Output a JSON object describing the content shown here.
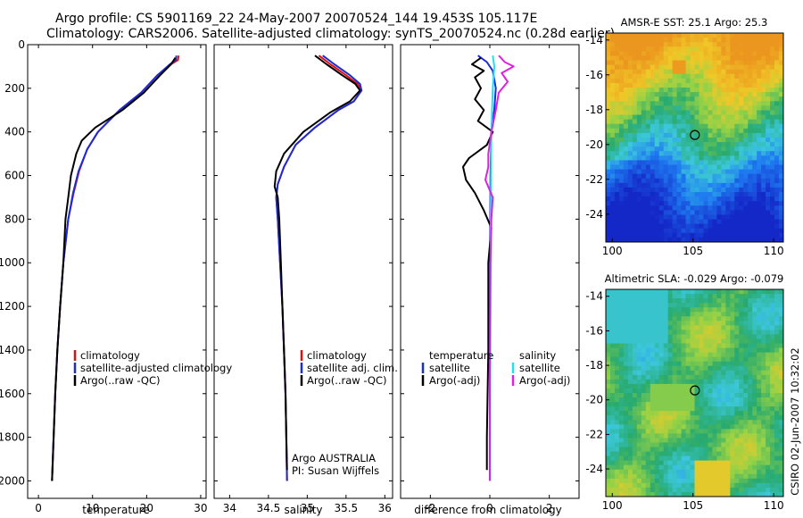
{
  "header": {
    "line1": "Argo profile: CS 5901169_22 24-May-2007 20070524_144 19.453S 105.117E",
    "line2": "Climatology: CARS2006. Satellite-adjusted climatology: synTS_20070524.nc (0.28d earlier)"
  },
  "colors": {
    "red": "#e01010",
    "blue": "#1a2bd8",
    "black": "#000000",
    "cyan": "#22e0f0",
    "magenta": "#e020e0"
  },
  "chart_data": [
    {
      "type": "line",
      "name": "temperature-profile",
      "xlabel": "temperature",
      "xlim": [
        -2,
        31
      ],
      "ylim": [
        2080,
        0
      ],
      "xticks": [
        0,
        10,
        20,
        30
      ],
      "yticks": [
        0,
        200,
        400,
        600,
        800,
        1000,
        1200,
        1400,
        1600,
        1800,
        2000
      ],
      "legend": [
        "climatology",
        "satellite-adjusted climatology",
        "Argo(..raw -QC)"
      ],
      "series": [
        {
          "name": "climatology",
          "color": "red",
          "points": [
            [
              25.9,
              50
            ],
            [
              25.8,
              70
            ],
            [
              24.5,
              90
            ],
            [
              22,
              140
            ],
            [
              19,
              220
            ],
            [
              15,
              300
            ],
            [
              11,
              400
            ],
            [
              9,
              480
            ],
            [
              7.5,
              580
            ],
            [
              6.5,
              680
            ],
            [
              5.5,
              800
            ],
            [
              4.6,
              1000
            ],
            [
              4,
              1200
            ],
            [
              3.5,
              1400
            ],
            [
              3.1,
              1600
            ],
            [
              2.8,
              1800
            ],
            [
              2.5,
              2000
            ]
          ]
        },
        {
          "name": "satellite-adjusted",
          "color": "blue",
          "points": [
            [
              25.5,
              50
            ],
            [
              25.4,
              70
            ],
            [
              24.3,
              90
            ],
            [
              22,
              140
            ],
            [
              19,
              220
            ],
            [
              15,
              300
            ],
            [
              11,
              400
            ],
            [
              9,
              480
            ],
            [
              7.4,
              580
            ],
            [
              6.4,
              680
            ],
            [
              5.5,
              800
            ],
            [
              4.6,
              1000
            ],
            [
              4,
              1200
            ],
            [
              3.5,
              1400
            ],
            [
              3.1,
              1600
            ],
            [
              2.8,
              1800
            ],
            [
              2.5,
              2000
            ]
          ]
        },
        {
          "name": "argo",
          "color": "black",
          "points": [
            [
              25.3,
              60
            ],
            [
              24.5,
              90
            ],
            [
              22.5,
              140
            ],
            [
              19.5,
              220
            ],
            [
              15.5,
              300
            ],
            [
              10.5,
              380
            ],
            [
              8,
              440
            ],
            [
              7,
              500
            ],
            [
              6,
              600
            ],
            [
              5.5,
              700
            ],
            [
              5,
              800
            ],
            [
              4.6,
              1000
            ],
            [
              4,
              1200
            ],
            [
              3.5,
              1400
            ],
            [
              3.1,
              1600
            ],
            [
              2.8,
              1800
            ],
            [
              2.5,
              2000
            ]
          ]
        }
      ]
    },
    {
      "type": "line",
      "name": "salinity-profile",
      "xlabel": "salinity",
      "xlim": [
        33.8,
        36.1
      ],
      "ylim": [
        2080,
        0
      ],
      "xticks": [
        34,
        34.5,
        35,
        35.5,
        36
      ],
      "yticks": [
        0,
        200,
        400,
        600,
        800,
        1000,
        1200,
        1400,
        1600,
        1800,
        2000
      ],
      "legend": [
        "climatology",
        "satellite adj. clim.",
        "Argo(..raw -QC)"
      ],
      "annotations": [
        "Argo AUSTRALIA",
        "PI: Susan Wijffels"
      ],
      "series": [
        {
          "name": "climatology",
          "color": "red",
          "points": [
            [
              35.15,
              50
            ],
            [
              35.3,
              90
            ],
            [
              35.5,
              140
            ],
            [
              35.65,
              180
            ],
            [
              35.7,
              210
            ],
            [
              35.6,
              260
            ],
            [
              35.4,
              300
            ],
            [
              35.1,
              380
            ],
            [
              34.85,
              460
            ],
            [
              34.7,
              560
            ],
            [
              34.62,
              640
            ],
            [
              34.6,
              700
            ],
            [
              34.62,
              800
            ],
            [
              34.65,
              1000
            ],
            [
              34.68,
              1200
            ],
            [
              34.7,
              1400
            ],
            [
              34.72,
              1600
            ],
            [
              34.73,
              1800
            ],
            [
              34.74,
              2000
            ]
          ]
        },
        {
          "name": "satellite-adjusted",
          "color": "blue",
          "points": [
            [
              35.2,
              50
            ],
            [
              35.35,
              90
            ],
            [
              35.55,
              140
            ],
            [
              35.68,
              180
            ],
            [
              35.7,
              210
            ],
            [
              35.6,
              260
            ],
            [
              35.4,
              300
            ],
            [
              35.1,
              380
            ],
            [
              34.85,
              460
            ],
            [
              34.7,
              560
            ],
            [
              34.62,
              640
            ],
            [
              34.6,
              700
            ],
            [
              34.62,
              800
            ],
            [
              34.65,
              1000
            ],
            [
              34.68,
              1200
            ],
            [
              34.7,
              1400
            ],
            [
              34.72,
              1600
            ],
            [
              34.73,
              1800
            ],
            [
              34.74,
              2000
            ]
          ]
        },
        {
          "name": "argo",
          "color": "black",
          "points": [
            [
              35.1,
              50
            ],
            [
              35.25,
              90
            ],
            [
              35.45,
              140
            ],
            [
              35.62,
              180
            ],
            [
              35.68,
              210
            ],
            [
              35.55,
              260
            ],
            [
              35.3,
              310
            ],
            [
              34.95,
              400
            ],
            [
              34.7,
              500
            ],
            [
              34.6,
              580
            ],
            [
              34.58,
              650
            ],
            [
              34.62,
              700
            ],
            [
              34.64,
              800
            ],
            [
              34.66,
              1000
            ],
            [
              34.68,
              1200
            ],
            [
              34.7,
              1400
            ],
            [
              34.72,
              1600
            ],
            [
              34.73,
              1800
            ],
            [
              34.74,
              1950
            ]
          ]
        }
      ]
    },
    {
      "type": "line",
      "name": "difference-profile",
      "xlabel": "difference from climatology",
      "xlim": [
        -3,
        3
      ],
      "ylim": [
        2080,
        0
      ],
      "xticks": [
        -2,
        0,
        2
      ],
      "yticks": [
        0,
        200,
        400,
        600,
        800,
        1000,
        1200,
        1400,
        1600,
        1800,
        2000
      ],
      "legend_left": {
        "heading": "temperature",
        "items": [
          "satellite",
          "Argo(-adj)"
        ]
      },
      "legend_right": {
        "heading": "salinity",
        "items": [
          "satellite",
          "Argo(-adj)"
        ]
      },
      "series": [
        {
          "name": "temperature-satellite",
          "color": "blue",
          "points": [
            [
              -0.4,
              50
            ],
            [
              -0.1,
              80
            ],
            [
              0.1,
              120
            ],
            [
              0.2,
              200
            ],
            [
              0.15,
              300
            ],
            [
              0.05,
              400
            ],
            [
              0.02,
              600
            ],
            [
              0.01,
              1000
            ],
            [
              0,
              1500
            ],
            [
              0,
              2000
            ]
          ]
        },
        {
          "name": "temperature-argo",
          "color": "black",
          "points": [
            [
              -0.3,
              60
            ],
            [
              -0.6,
              90
            ],
            [
              -0.2,
              120
            ],
            [
              -0.5,
              150
            ],
            [
              -0.3,
              200
            ],
            [
              -0.5,
              250
            ],
            [
              -0.2,
              300
            ],
            [
              -0.4,
              350
            ],
            [
              0.1,
              400
            ],
            [
              -0.1,
              460
            ],
            [
              -0.7,
              520
            ],
            [
              -0.9,
              560
            ],
            [
              -0.8,
              620
            ],
            [
              -0.5,
              680
            ],
            [
              -0.2,
              760
            ],
            [
              0.05,
              840
            ],
            [
              -0.05,
              1000
            ],
            [
              -0.05,
              1400
            ],
            [
              -0.1,
              1800
            ],
            [
              -0.1,
              1950
            ]
          ]
        },
        {
          "name": "salinity-satellite",
          "color": "cyan",
          "points": [
            [
              0.1,
              50
            ],
            [
              0.15,
              100
            ],
            [
              0.1,
              200
            ],
            [
              0.05,
              400
            ],
            [
              0.03,
              800
            ],
            [
              0.02,
              1200
            ],
            [
              0.01,
              1600
            ],
            [
              0.01,
              2000
            ]
          ]
        },
        {
          "name": "salinity-argo",
          "color": "magenta",
          "points": [
            [
              0.3,
              50
            ],
            [
              0.5,
              80
            ],
            [
              0.8,
              100
            ],
            [
              0.4,
              130
            ],
            [
              0.6,
              170
            ],
            [
              0.3,
              220
            ],
            [
              0.2,
              300
            ],
            [
              0.05,
              400
            ],
            [
              -0.05,
              500
            ],
            [
              -0.05,
              560
            ],
            [
              -0.15,
              620
            ],
            [
              0.1,
              700
            ],
            [
              0.05,
              800
            ],
            [
              0.02,
              1000
            ],
            [
              0,
              1500
            ],
            [
              0,
              2000
            ]
          ]
        }
      ]
    },
    {
      "type": "heatmap",
      "name": "sst-map",
      "title": "AMSR-E SST: 25.1  Argo: 25.3",
      "xlim": [
        99.6,
        110.6
      ],
      "ylim": [
        -25.6,
        -13.6
      ],
      "xticks": [
        100,
        105,
        110
      ],
      "yticks": [
        -14,
        -16,
        -18,
        -20,
        -22,
        -24
      ],
      "marker": [
        105.117,
        -19.453
      ]
    },
    {
      "type": "heatmap",
      "name": "sla-map",
      "title": "Altimetric SLA: -0.029  Argo: -0.079",
      "xlim": [
        99.6,
        110.6
      ],
      "ylim": [
        -25.6,
        -13.6
      ],
      "xticks": [
        100,
        105,
        110
      ],
      "yticks": [
        -14,
        -16,
        -18,
        -20,
        -22,
        -24
      ],
      "marker": [
        105.117,
        -19.453
      ]
    }
  ],
  "footer": {
    "credit": "CSIRO 02-Jun-2007 10:32:02"
  }
}
